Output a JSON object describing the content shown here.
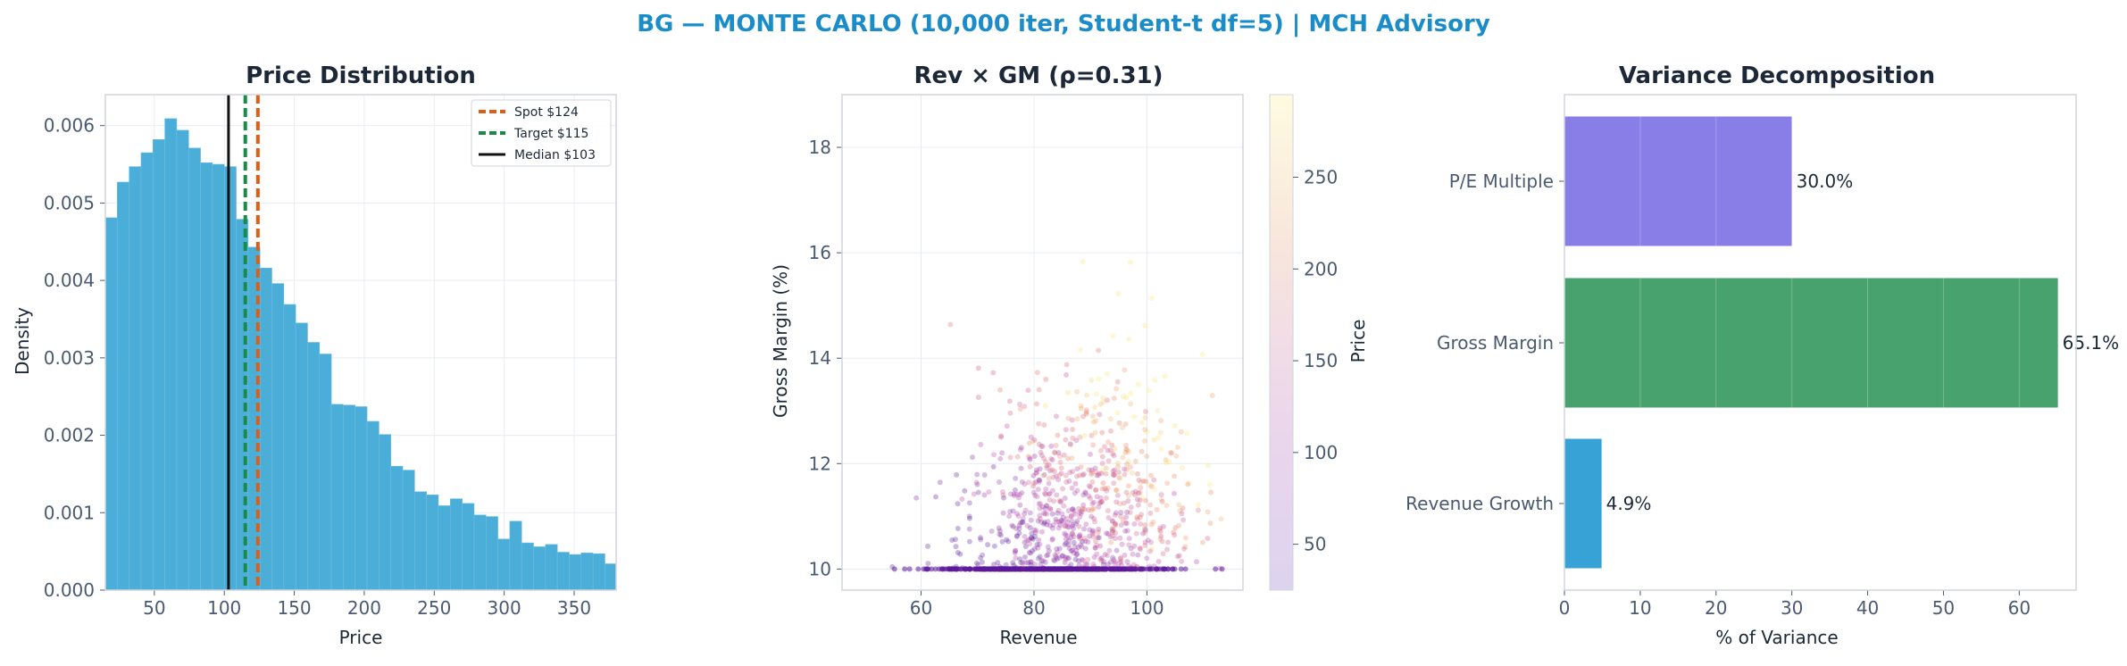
{
  "suptitle": "BG — MONTE CARLO (10,000 iter, Student-t df=5) | MCH Advisory",
  "colors": {
    "title": "#1a8cc7",
    "text": "#1c2838",
    "tick": "#4a5a70",
    "hist": "#4aaed8",
    "spot": "#d95f1a",
    "target": "#1a8a4a",
    "median": "#111111",
    "pe": "#897de8",
    "gm": "#48a26e",
    "rev": "#36a2d5"
  },
  "chart_data": [
    {
      "type": "bar",
      "subtype": "histogram",
      "title": "Price Distribution",
      "xlabel": "Price",
      "ylabel": "Density",
      "xlim": [
        15,
        380
      ],
      "ylim": [
        0,
        0.0064
      ],
      "bin_start": 15,
      "bin_width": 8.5,
      "values": [
        0.00481,
        0.00527,
        0.00547,
        0.00565,
        0.00582,
        0.00609,
        0.00594,
        0.00571,
        0.00552,
        0.0055,
        0.00547,
        0.00479,
        0.00443,
        0.00416,
        0.00396,
        0.00369,
        0.00345,
        0.0032,
        0.00305,
        0.0024,
        0.00239,
        0.00237,
        0.00218,
        0.00201,
        0.0016,
        0.00155,
        0.00127,
        0.00123,
        0.00109,
        0.00118,
        0.00112,
        0.00097,
        0.00095,
        0.00066,
        0.00089,
        0.00061,
        0.00056,
        0.00059,
        0.00049,
        0.00046,
        0.00048,
        0.00047,
        0.00034,
        0.00034
      ],
      "xticks": [
        50,
        100,
        150,
        200,
        250,
        300,
        350
      ],
      "yticks": [
        "0.000",
        "0.001",
        "0.002",
        "0.003",
        "0.004",
        "0.005",
        "0.006"
      ],
      "vlines": [
        {
          "label": "Spot $124",
          "x": 124,
          "style": "dashed",
          "color": "spot"
        },
        {
          "label": "Target $115",
          "x": 115,
          "style": "dashed",
          "color": "target"
        },
        {
          "label": "Median $103",
          "x": 103,
          "style": "solid",
          "color": "median"
        }
      ],
      "legend_placement": "top-right",
      "grid": true
    },
    {
      "type": "scatter",
      "title": "Rev × GM (ρ=0.31)",
      "xlabel": "Revenue",
      "ylabel": "Gross Margin (%)",
      "xlim": [
        46,
        117
      ],
      "ylim": [
        9.6,
        19
      ],
      "xticks": [
        60,
        80,
        100
      ],
      "yticks": [
        10,
        12,
        14,
        16,
        18
      ],
      "colorbar": {
        "label": "Price",
        "ticks": [
          50,
          100,
          150,
          200,
          250
        ],
        "range": [
          25,
          295
        ],
        "colormap": "plasma-pale"
      },
      "n_points": 1400,
      "revenue_mean": 85,
      "revenue_sd": 10,
      "margin_floor": 10,
      "correlation": 0.31,
      "grid": true
    },
    {
      "type": "bar",
      "orientation": "horizontal",
      "title": "Variance Decomposition",
      "xlabel": "% of Variance",
      "xlim": [
        0,
        67.5
      ],
      "xticks": [
        0,
        10,
        20,
        30,
        40,
        50,
        60
      ],
      "categories": [
        "P/E Multiple",
        "Gross Margin",
        "Revenue Growth"
      ],
      "values": [
        30.0,
        65.1,
        4.9
      ],
      "data_labels": [
        "30.0%",
        "65.1%",
        "4.9%"
      ],
      "bar_colors": [
        "pe",
        "gm",
        "rev"
      ],
      "grid": true
    }
  ]
}
